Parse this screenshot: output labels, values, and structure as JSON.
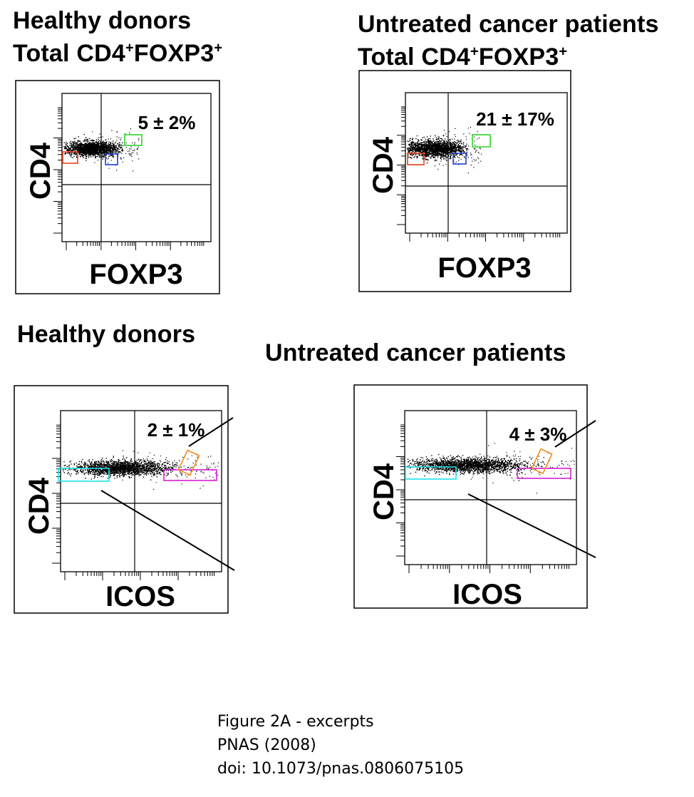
{
  "headings": {
    "top_left": {
      "line1": "Healthy donors",
      "line2_prefix": "Total CD4",
      "line2_sup1": "+",
      "line2_mid": "FOXP3",
      "line2_sup2": "+"
    },
    "top_right": {
      "line1": "Untreated cancer patients",
      "line2_prefix": "Total CD4",
      "line2_sup1": "+",
      "line2_mid": "FOXP3",
      "line2_sup2": "+"
    },
    "bottom_left": {
      "line1": "Healthy donors"
    },
    "bottom_right": {
      "line1": "Untreated cancer patients"
    }
  },
  "caption": {
    "line1": "Figure 2A - excerpts",
    "line2": "PNAS (2008)",
    "line3": "doi: 10.1073/pnas.0806075105"
  },
  "chart_data": [
    {
      "type": "scatter",
      "group": "Healthy donors",
      "xlabel": "FOXP3",
      "ylabel": "CD4",
      "annotation": "5 ± 2%",
      "gate_colors": {
        "red": "#e8431a",
        "blue": "#1f3fd6",
        "green": "#2bd62b"
      }
    },
    {
      "type": "scatter",
      "group": "Untreated cancer patients",
      "xlabel": "FOXP3",
      "ylabel": "CD4",
      "annotation": "21 ± 17%",
      "gate_colors": {
        "red": "#e8431a",
        "blue": "#1f3fd6",
        "green": "#2bd62b"
      }
    },
    {
      "type": "scatter",
      "group": "Healthy donors",
      "xlabel": "ICOS",
      "ylabel": "CD4",
      "annotation": "2 ± 1%",
      "gate_colors": {
        "cyan": "#1fe0e6",
        "magenta": "#d61fd6",
        "orange": "#f08a1c"
      }
    },
    {
      "type": "scatter",
      "group": "Untreated cancer patients",
      "xlabel": "ICOS",
      "ylabel": "CD4",
      "annotation": "4 ± 3%",
      "gate_colors": {
        "cyan": "#1fe0e6",
        "magenta": "#d61fd6",
        "orange": "#f08a1c"
      }
    }
  ]
}
